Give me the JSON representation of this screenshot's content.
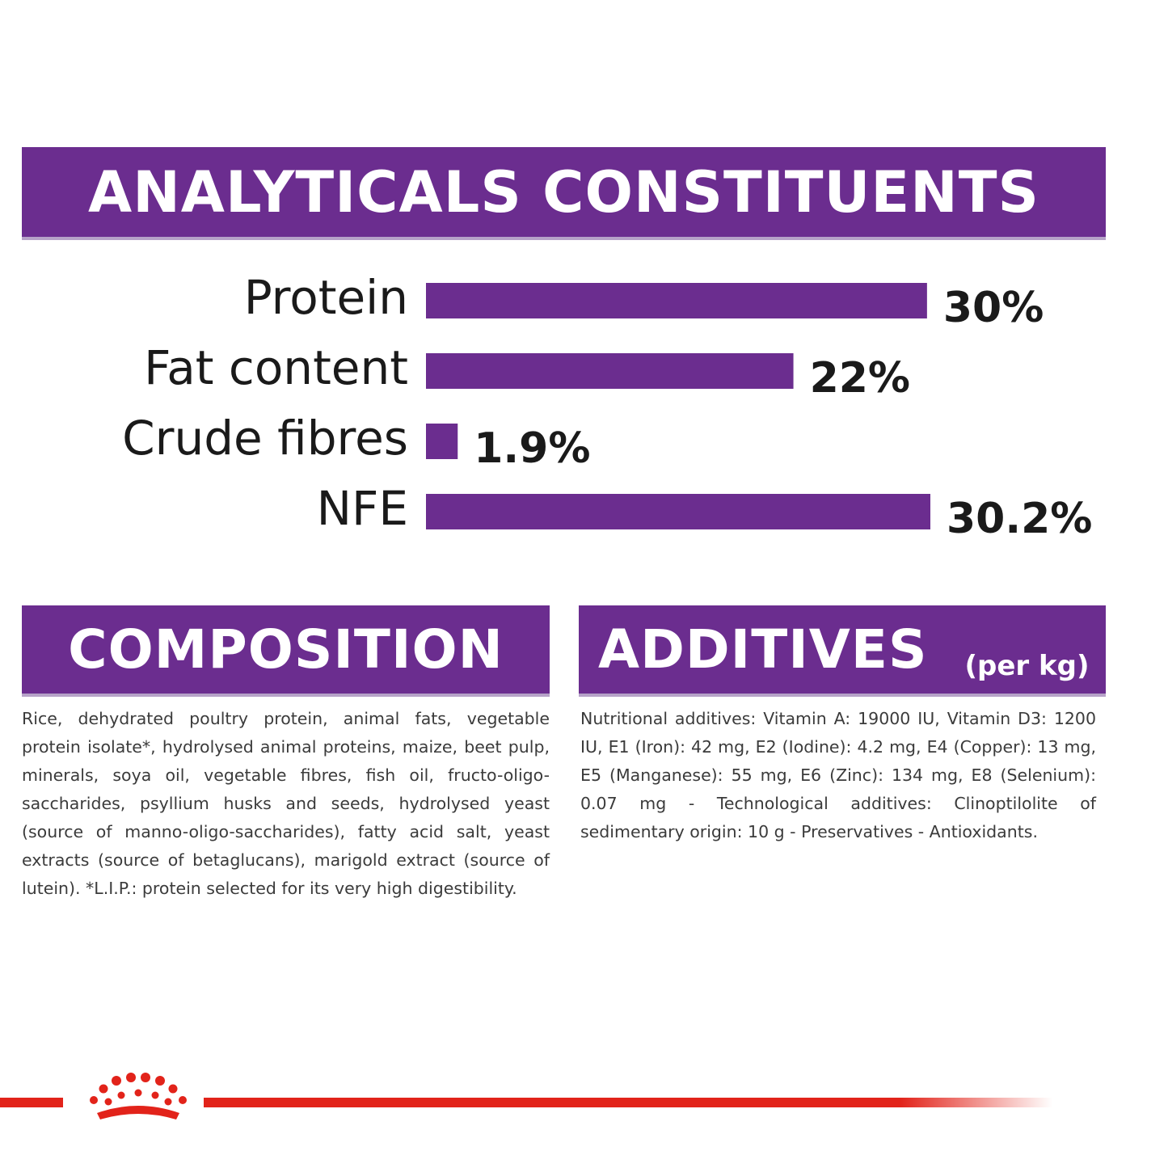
{
  "banners": {
    "analytical": "ANALYTICALS CONSTITUENTS",
    "composition": "COMPOSITION",
    "additives": "ADDITIVES",
    "additives_unit": "(per kg)"
  },
  "colors": {
    "bar": "#6b2d8f",
    "banner": "#6b2d8f",
    "brand_red": "#e2231a"
  },
  "chart_data": {
    "type": "bar",
    "orientation": "horizontal",
    "categories": [
      "Protein",
      "Fat content",
      "Crude fibres",
      "NFE"
    ],
    "values": [
      30,
      22,
      1.9,
      30.2
    ],
    "value_labels": [
      "30%",
      "22%",
      "1.9%",
      "30.2%"
    ],
    "unit": "%",
    "xlim": [
      0,
      30.2
    ],
    "grid": false,
    "legend": "none"
  },
  "composition_text": "Rice, dehydrated poultry protein, animal fats, vegetable protein isolate*, hydrolysed animal proteins, maize, beet pulp, minerals, soya oil, vegetable fibres, fish oil, fructo-oligo-saccharides, psyllium husks and seeds, hydrolysed yeast (source of manno-oligo-saccharides), fatty acid salt, yeast extracts (source of betaglucans), marigold extract (source of lutein). *L.I.P.: protein selected for its very high digestibility.",
  "additives_text": "Nutritional additives: Vitamin A: 19000 IU, Vitamin D3: 1200 IU, E1 (Iron): 42 mg, E2 (Iodine): 4.2 mg, E4 (Copper): 13 mg, E5 (Manganese): 55 mg, E6 (Zinc): 134 mg, E8 (Selenium): 0.07 mg - Technological additives: Clinoptilolite of sedimentary origin: 10 g - Preservatives - Antioxidants.",
  "footer": {
    "logo_icon": "royal-canin-crown-icon"
  }
}
